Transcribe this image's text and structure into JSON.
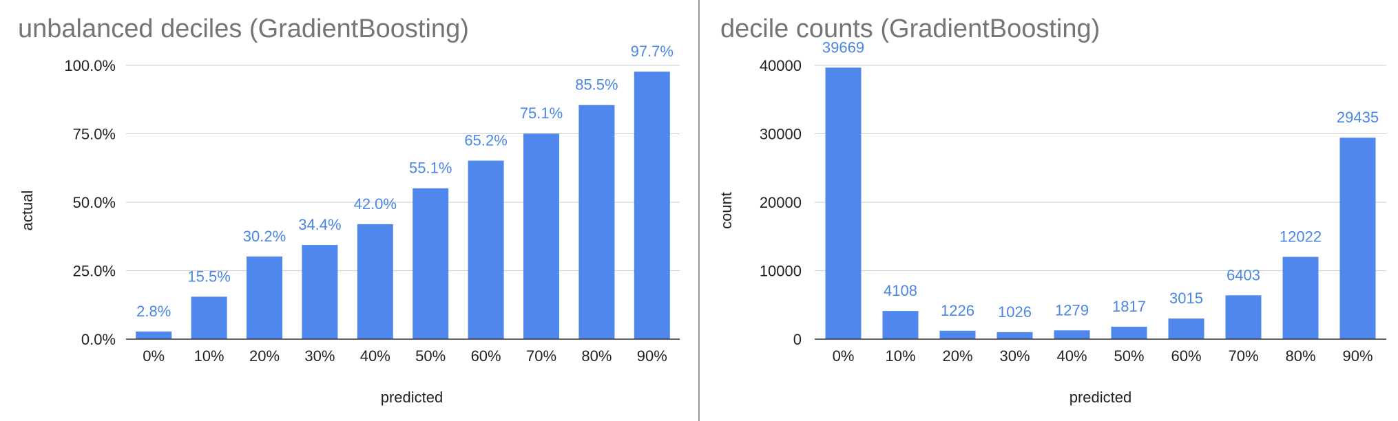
{
  "chart_data": [
    {
      "type": "bar",
      "title": "unbalanced deciles (GradientBoosting)",
      "xlabel": "predicted",
      "ylabel": "actual",
      "categories": [
        "0%",
        "10%",
        "20%",
        "30%",
        "40%",
        "50%",
        "60%",
        "70%",
        "80%",
        "90%"
      ],
      "values": [
        2.8,
        15.5,
        30.2,
        34.4,
        42.0,
        55.1,
        65.2,
        75.1,
        85.5,
        97.7
      ],
      "data_labels": [
        "2.8%",
        "15.5%",
        "30.2%",
        "34.4%",
        "42.0%",
        "55.1%",
        "65.2%",
        "75.1%",
        "85.5%",
        "97.7%"
      ],
      "ylim": [
        0,
        100
      ],
      "yticks": [
        0,
        25,
        50,
        75,
        100
      ],
      "ytick_labels": [
        "0.0%",
        "25.0%",
        "50.0%",
        "75.0%",
        "100.0%"
      ],
      "grid": true,
      "bar_color": "#5087ec"
    },
    {
      "type": "bar",
      "title": "decile counts (GradientBoosting)",
      "xlabel": "predicted",
      "ylabel": "count",
      "categories": [
        "0%",
        "10%",
        "20%",
        "30%",
        "40%",
        "50%",
        "60%",
        "70%",
        "80%",
        "90%"
      ],
      "values": [
        39669,
        4108,
        1226,
        1026,
        1279,
        1817,
        3015,
        6403,
        12022,
        29435
      ],
      "data_labels": [
        "39669",
        "4108",
        "1226",
        "1026",
        "1279",
        "1817",
        "3015",
        "6403",
        "12022",
        "29435"
      ],
      "ylim": [
        0,
        40000
      ],
      "yticks": [
        0,
        10000,
        20000,
        30000,
        40000
      ],
      "ytick_labels": [
        "0",
        "10000",
        "20000",
        "30000",
        "40000"
      ],
      "grid": true,
      "bar_color": "#5087ec"
    }
  ]
}
